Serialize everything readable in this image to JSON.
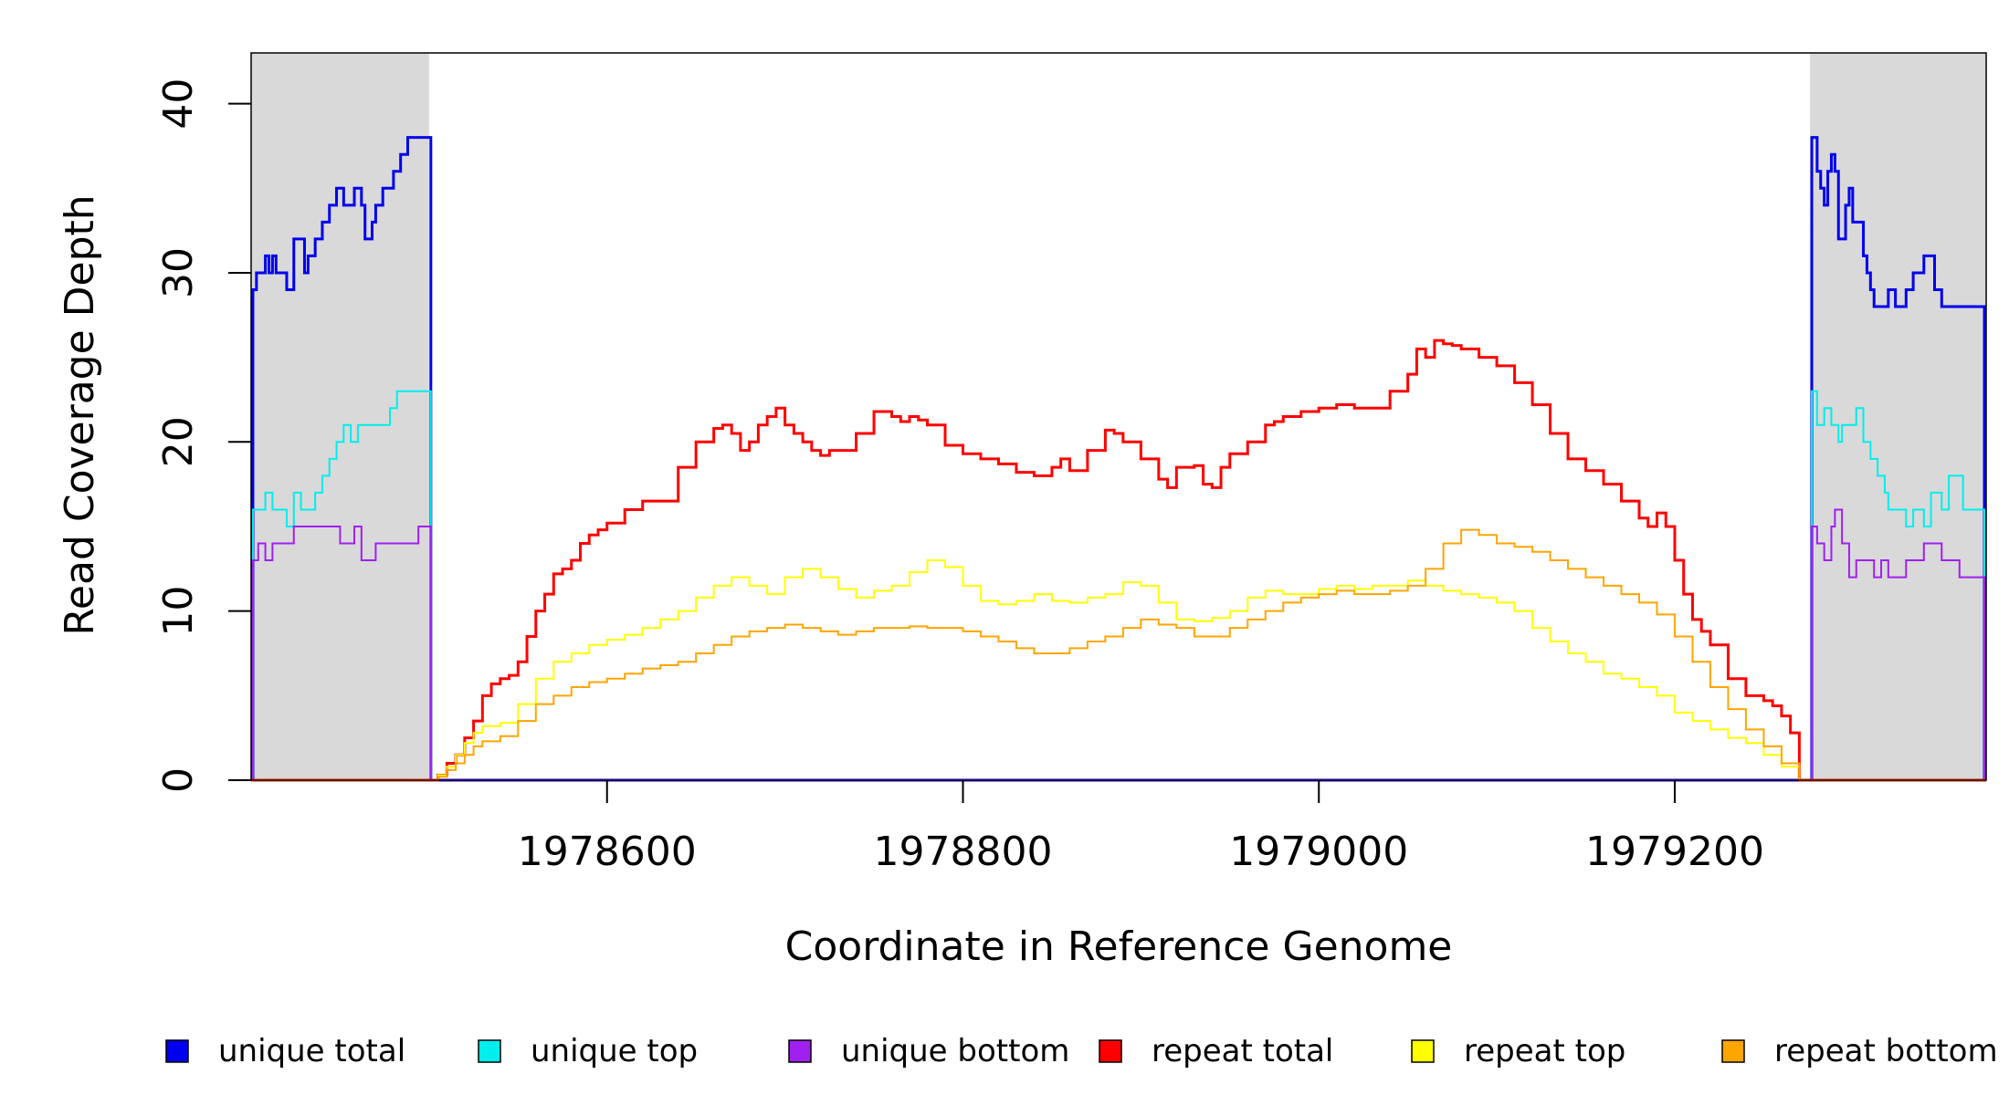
{
  "chart_data": {
    "type": "line",
    "title": "",
    "xlabel": "Coordinate in Reference Genome",
    "ylabel": "Read Coverage Depth",
    "xlim": [
      1978400,
      1979375
    ],
    "ylim": [
      0,
      43
    ],
    "x_ticks": [
      1978600,
      1978800,
      1979000,
      1979200
    ],
    "x_tick_labels": [
      "1978600",
      "1978800",
      "1979000",
      "1979200"
    ],
    "y_ticks": [
      0,
      10,
      20,
      30,
      40
    ],
    "y_tick_labels": [
      "0",
      "10",
      "20",
      "30",
      "40"
    ],
    "shaded_regions": [
      {
        "x": [
          1978400,
          1978500
        ],
        "color": "#d9d9d9"
      },
      {
        "x": [
          1979276,
          1979375
        ],
        "color": "#d9d9d9"
      }
    ],
    "grid": false,
    "legend_position": "bottom",
    "series": [
      {
        "name": "unique total",
        "color": "#0000ee",
        "x": [
          1978401,
          1978403,
          1978408,
          1978410,
          1978412,
          1978414,
          1978416,
          1978420,
          1978424,
          1978426,
          1978430,
          1978432,
          1978436,
          1978440,
          1978444,
          1978448,
          1978452,
          1978454,
          1978458,
          1978462,
          1978464,
          1978468,
          1978470,
          1978474,
          1978478,
          1978480,
          1978484,
          1978488,
          1978490,
          1978494,
          1978496,
          1978499,
          1978500,
          1978501,
          1979276,
          1979277,
          1979280,
          1979282,
          1979284,
          1979286,
          1979288,
          1979290,
          1979292,
          1979296,
          1979298,
          1979300,
          1979302,
          1979306,
          1979308,
          1979310,
          1979312,
          1979315,
          1979320,
          1979324,
          1979330,
          1979334,
          1979340,
          1979346,
          1979350,
          1979354,
          1979362,
          1979374
        ],
        "y": [
          29,
          30,
          31,
          30,
          31,
          30,
          30,
          29,
          32,
          32,
          30,
          31,
          32,
          33,
          34,
          35,
          34,
          34,
          35,
          34,
          32,
          33,
          34,
          35,
          35,
          36,
          37,
          38,
          38,
          38,
          38,
          38,
          38,
          0,
          0,
          38,
          36,
          35,
          34,
          36,
          37,
          36,
          32,
          34,
          35,
          33,
          33,
          31,
          30,
          29,
          28,
          28,
          29,
          28,
          29,
          30,
          31,
          29,
          28,
          28,
          28,
          28
        ]
      },
      {
        "name": "unique top",
        "color": "#00eeee",
        "x": [
          1978401,
          1978408,
          1978412,
          1978416,
          1978420,
          1978424,
          1978428,
          1978432,
          1978436,
          1978440,
          1978444,
          1978448,
          1978452,
          1978456,
          1978460,
          1978464,
          1978470,
          1978474,
          1978478,
          1978482,
          1978486,
          1978490,
          1978494,
          1978499,
          1978500,
          1978501,
          1979276,
          1979277,
          1979280,
          1979284,
          1979288,
          1979292,
          1979294,
          1979298,
          1979302,
          1979306,
          1979310,
          1979314,
          1979318,
          1979320,
          1979324,
          1979330,
          1979334,
          1979340,
          1979344,
          1979350,
          1979354,
          1979362,
          1979374
        ],
        "y": [
          16,
          17,
          16,
          16,
          15,
          17,
          16,
          16,
          17,
          18,
          19,
          20,
          21,
          20,
          21,
          21,
          21,
          21,
          22,
          23,
          23,
          23,
          23,
          23,
          23,
          0,
          0,
          23,
          21,
          22,
          21,
          20,
          21,
          21,
          22,
          20,
          19,
          18,
          17,
          16,
          16,
          15,
          16,
          15,
          17,
          16,
          18,
          16,
          16
        ]
      },
      {
        "name": "unique bottom",
        "color": "#a020f0",
        "x": [
          1978401,
          1978404,
          1978408,
          1978412,
          1978416,
          1978420,
          1978424,
          1978428,
          1978432,
          1978436,
          1978440,
          1978444,
          1978450,
          1978454,
          1978458,
          1978462,
          1978466,
          1978470,
          1978474,
          1978478,
          1978482,
          1978486,
          1978490,
          1978494,
          1978499,
          1978500,
          1978501,
          1979276,
          1979277,
          1979280,
          1979284,
          1979288,
          1979290,
          1979294,
          1979298,
          1979302,
          1979308,
          1979312,
          1979316,
          1979320,
          1979326,
          1979330,
          1979334,
          1979340,
          1979346,
          1979350,
          1979354,
          1979360,
          1979374
        ],
        "y": [
          13,
          14,
          13,
          14,
          14,
          14,
          15,
          15,
          15,
          15,
          15,
          15,
          14,
          14,
          15,
          13,
          13,
          14,
          14,
          14,
          14,
          14,
          14,
          15,
          15,
          15,
          0,
          0,
          15,
          14,
          13,
          15,
          16,
          14,
          12,
          13,
          13,
          12,
          13,
          12,
          12,
          13,
          13,
          14,
          14,
          13,
          13,
          12,
          12
        ]
      },
      {
        "name": "repeat total",
        "color": "#ff0000",
        "x": [
          1978500,
          1978505,
          1978510,
          1978515,
          1978520,
          1978525,
          1978530,
          1978535,
          1978540,
          1978545,
          1978550,
          1978555,
          1978560,
          1978565,
          1978570,
          1978575,
          1978580,
          1978585,
          1978590,
          1978595,
          1978600,
          1978610,
          1978620,
          1978630,
          1978640,
          1978650,
          1978660,
          1978665,
          1978670,
          1978675,
          1978680,
          1978685,
          1978690,
          1978695,
          1978700,
          1978705,
          1978710,
          1978715,
          1978720,
          1978725,
          1978730,
          1978740,
          1978750,
          1978760,
          1978765,
          1978770,
          1978775,
          1978780,
          1978790,
          1978800,
          1978810,
          1978820,
          1978830,
          1978840,
          1978850,
          1978855,
          1978860,
          1978870,
          1978880,
          1978885,
          1978890,
          1978900,
          1978910,
          1978915,
          1978920,
          1978930,
          1978935,
          1978940,
          1978945,
          1978950,
          1978960,
          1978970,
          1978975,
          1978980,
          1978990,
          1979000,
          1979010,
          1979020,
          1979030,
          1979040,
          1979050,
          1979055,
          1979060,
          1979065,
          1979070,
          1979075,
          1979080,
          1979090,
          1979100,
          1979110,
          1979120,
          1979130,
          1979140,
          1979150,
          1979160,
          1979170,
          1979180,
          1979185,
          1979190,
          1979195,
          1979200,
          1979205,
          1979210,
          1979215,
          1979220,
          1979230,
          1979240,
          1979250,
          1979255,
          1979260,
          1979265,
          1979270
        ],
        "y": [
          0,
          0.3,
          1,
          1.5,
          2.5,
          3.5,
          5,
          5.7,
          6,
          6.2,
          7,
          8.5,
          10,
          11,
          12.2,
          12.5,
          13,
          14,
          14.5,
          14.8,
          15.2,
          16,
          16.5,
          16.5,
          18.5,
          20,
          20.8,
          21,
          20.5,
          19.5,
          20,
          21,
          21.5,
          22,
          21,
          20.5,
          20,
          19.5,
          19.2,
          19.5,
          19.5,
          20.5,
          21.8,
          21.5,
          21.2,
          21.5,
          21.3,
          21,
          19.8,
          19.3,
          19,
          18.7,
          18.2,
          18,
          18.5,
          19,
          18.3,
          19.5,
          20.7,
          20.5,
          20,
          19,
          17.8,
          17.3,
          18.5,
          18.6,
          17.5,
          17.3,
          18.5,
          19.3,
          20,
          21,
          21.2,
          21.5,
          21.8,
          22,
          22.2,
          22,
          22,
          23,
          24,
          25.5,
          25,
          26,
          25.8,
          25.7,
          25.5,
          25,
          24.5,
          23.5,
          22.2,
          20.5,
          19,
          18.3,
          17.5,
          16.5,
          15.5,
          15,
          15.8,
          15,
          13,
          11,
          9.5,
          8.8,
          8,
          6,
          5,
          4.7,
          4.4,
          3.8,
          2.8,
          1.6
        ]
      },
      {
        "name": "repeat top",
        "color": "#ffff00",
        "x": [
          1978500,
          1978505,
          1978510,
          1978515,
          1978520,
          1978525,
          1978530,
          1978540,
          1978550,
          1978560,
          1978570,
          1978580,
          1978590,
          1978600,
          1978610,
          1978620,
          1978630,
          1978640,
          1978650,
          1978660,
          1978670,
          1978680,
          1978690,
          1978700,
          1978710,
          1978720,
          1978730,
          1978740,
          1978750,
          1978760,
          1978770,
          1978780,
          1978790,
          1978800,
          1978810,
          1978820,
          1978830,
          1978840,
          1978850,
          1978860,
          1978870,
          1978880,
          1978890,
          1978900,
          1978910,
          1978920,
          1978930,
          1978940,
          1978950,
          1978960,
          1978970,
          1978980,
          1978990,
          1979000,
          1979010,
          1979020,
          1979030,
          1979040,
          1979050,
          1979060,
          1979070,
          1979080,
          1979090,
          1979100,
          1979110,
          1979120,
          1979130,
          1979140,
          1979150,
          1979160,
          1979170,
          1979180,
          1979190,
          1979200,
          1979210,
          1979220,
          1979230,
          1979240,
          1979250,
          1979260,
          1979270
        ],
        "y": [
          0,
          0.3,
          0.8,
          1.5,
          2.2,
          2.8,
          3.2,
          3.4,
          4.5,
          6,
          7,
          7.5,
          8,
          8.3,
          8.6,
          9,
          9.5,
          10,
          10.8,
          11.5,
          12,
          11.5,
          11,
          12,
          12.5,
          12,
          11.3,
          10.8,
          11.2,
          11.5,
          12.3,
          13,
          12.6,
          11.5,
          10.6,
          10.4,
          10.6,
          11,
          10.6,
          10.5,
          10.8,
          11,
          11.7,
          11.5,
          10.5,
          9.5,
          9.4,
          9.6,
          10,
          10.8,
          11.2,
          11,
          11,
          11.3,
          11.5,
          11.3,
          11.5,
          11.5,
          11.8,
          11.5,
          11.2,
          11,
          10.8,
          10.5,
          10,
          9,
          8.2,
          7.5,
          7,
          6.3,
          6,
          5.5,
          5,
          4,
          3.5,
          3,
          2.5,
          2.2,
          1.5,
          0.8,
          0.2
        ]
      },
      {
        "name": "repeat bottom",
        "color": "#ffa500",
        "x": [
          1978500,
          1978505,
          1978510,
          1978515,
          1978520,
          1978525,
          1978530,
          1978540,
          1978550,
          1978560,
          1978570,
          1978580,
          1978590,
          1978600,
          1978610,
          1978620,
          1978630,
          1978640,
          1978650,
          1978660,
          1978670,
          1978680,
          1978690,
          1978700,
          1978710,
          1978720,
          1978730,
          1978740,
          1978750,
          1978760,
          1978770,
          1978780,
          1978790,
          1978800,
          1978810,
          1978820,
          1978830,
          1978840,
          1978850,
          1978860,
          1978870,
          1978880,
          1978890,
          1978900,
          1978910,
          1978920,
          1978930,
          1978940,
          1978950,
          1978960,
          1978970,
          1978980,
          1978990,
          1979000,
          1979010,
          1979020,
          1979030,
          1979040,
          1979050,
          1979060,
          1979070,
          1979080,
          1979090,
          1979100,
          1979110,
          1979120,
          1979130,
          1979140,
          1979150,
          1979160,
          1979170,
          1979180,
          1979190,
          1979200,
          1979210,
          1979220,
          1979230,
          1979240,
          1979250,
          1979260,
          1979270
        ],
        "y": [
          0,
          0.2,
          0.6,
          1,
          1.5,
          2,
          2.3,
          2.6,
          3.5,
          4.5,
          5,
          5.5,
          5.8,
          6,
          6.3,
          6.6,
          6.8,
          7,
          7.5,
          8,
          8.5,
          8.8,
          9,
          9.2,
          9,
          8.8,
          8.6,
          8.8,
          9,
          9,
          9.1,
          9,
          9,
          8.8,
          8.5,
          8.2,
          7.8,
          7.5,
          7.5,
          7.8,
          8.2,
          8.5,
          9,
          9.5,
          9.2,
          9,
          8.5,
          8.5,
          9,
          9.5,
          10,
          10.5,
          10.8,
          11,
          11.2,
          11,
          11,
          11.2,
          11.5,
          12.5,
          14,
          14.8,
          14.5,
          14,
          13.8,
          13.5,
          13,
          12.5,
          12,
          11.5,
          11,
          10.5,
          9.8,
          8.5,
          7,
          5.5,
          4.2,
          3,
          2,
          1,
          0.3
        ]
      }
    ]
  }
}
